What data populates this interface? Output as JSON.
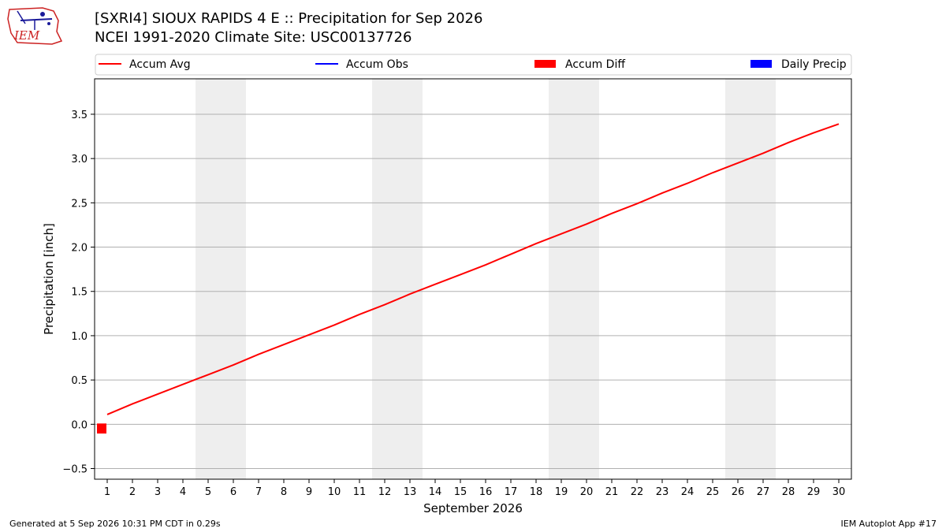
{
  "title_line1": "[SXRI4] SIOUX RAPIDS 4 E :: Precipitation for Sep 2026",
  "title_line2": "NCEI 1991-2020 Climate Site: USC00137726",
  "logo_text": "IEM",
  "footer_left": "Generated at 5 Sep 2026 10:31 PM CDT in 0.29s",
  "footer_right": "IEM Autoplot App #17",
  "colors": {
    "accum_avg": "#ff0000",
    "accum_obs": "#0000ff",
    "accum_diff": "#ff0000",
    "daily_precip": "#0000ff",
    "weekend_shade": "#eeeeee",
    "grid": "#b0b0b0"
  },
  "chart_data": {
    "type": "line",
    "xlabel": "September 2026",
    "ylabel": "Precipitation [inch]",
    "xlim": [
      0.5,
      30.5
    ],
    "ylim": [
      -0.62,
      3.9
    ],
    "x_ticks": [
      1,
      2,
      3,
      4,
      5,
      6,
      7,
      8,
      9,
      10,
      11,
      12,
      13,
      14,
      15,
      16,
      17,
      18,
      19,
      20,
      21,
      22,
      23,
      24,
      25,
      26,
      27,
      28,
      29,
      30
    ],
    "y_ticks": [
      -0.5,
      0.0,
      0.5,
      1.0,
      1.5,
      2.0,
      2.5,
      3.0,
      3.5
    ],
    "y_tick_labels": [
      "−0.5",
      "0.0",
      "0.5",
      "1.0",
      "1.5",
      "2.0",
      "2.5",
      "3.0",
      "3.5"
    ],
    "grid": "horizontal",
    "legend_position": "top",
    "legend": [
      {
        "name": "Accum Avg",
        "kind": "line",
        "color_key": "accum_avg"
      },
      {
        "name": "Accum Obs",
        "kind": "line",
        "color_key": "accum_obs"
      },
      {
        "name": "Accum Diff",
        "kind": "bar",
        "color_key": "accum_diff"
      },
      {
        "name": "Daily Precip",
        "kind": "bar",
        "color_key": "daily_precip"
      }
    ],
    "weekend_spans": [
      [
        4.5,
        6.5
      ],
      [
        11.5,
        13.5
      ],
      [
        18.5,
        20.5
      ],
      [
        25.5,
        27.5
      ]
    ],
    "series": [
      {
        "name": "Accum Avg",
        "x": [
          1,
          2,
          3,
          4,
          5,
          6,
          7,
          8,
          9,
          10,
          11,
          12,
          13,
          14,
          15,
          16,
          17,
          18,
          19,
          20,
          21,
          22,
          23,
          24,
          25,
          26,
          27,
          28,
          29,
          30
        ],
        "values": [
          0.11,
          0.23,
          0.34,
          0.45,
          0.56,
          0.67,
          0.79,
          0.9,
          1.01,
          1.12,
          1.24,
          1.35,
          1.47,
          1.58,
          1.69,
          1.8,
          1.92,
          2.04,
          2.15,
          2.26,
          2.38,
          2.49,
          2.61,
          2.72,
          2.84,
          2.95,
          3.06,
          3.18,
          3.29,
          3.39
        ]
      }
    ],
    "accum_diff": {
      "name": "Accum Diff",
      "x": [
        1
      ],
      "values": [
        -0.06
      ]
    }
  }
}
